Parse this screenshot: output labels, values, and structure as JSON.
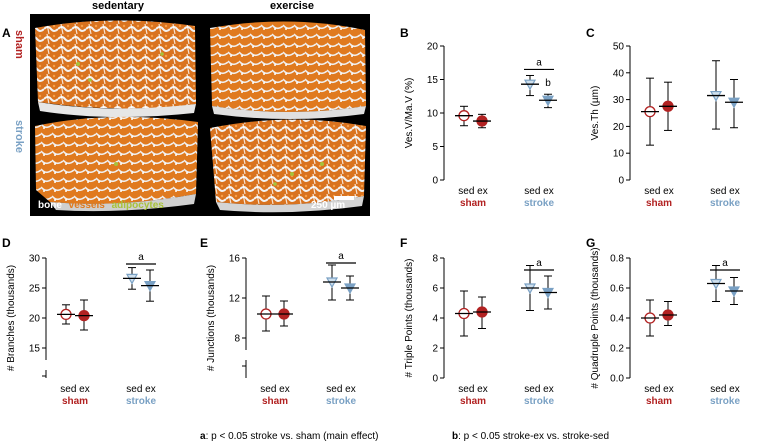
{
  "figure": {
    "panel_letters": [
      "A",
      "B",
      "C",
      "D",
      "E",
      "F",
      "G"
    ],
    "image_panel": {
      "column_headers": [
        "sedentary",
        "exercise"
      ],
      "row_labels": [
        "sham",
        "stroke"
      ],
      "legend": [
        "bone",
        "vessels",
        "adipocytes"
      ],
      "scale_bar": "250 µm"
    },
    "group_labels": {
      "sham_conditions": "sed ex",
      "stroke_conditions": "sed ex",
      "sham": "sham",
      "stroke": "stroke"
    },
    "footnotes": {
      "a_key": "a",
      "a_text": ": p < 0.05 stroke vs. sham (main effect)",
      "b_key": "b",
      "b_text": ": p < 0.05 stroke-ex vs. stroke-sed"
    },
    "colors": {
      "sham": "#b22222",
      "stroke": "#7aa1c4",
      "vessels": "#e07a1f",
      "adipocytes": "#a8c23a",
      "bone": "#ffffff"
    }
  },
  "chart_data": [
    {
      "panel": "B",
      "type": "scatter",
      "ylabel": "Ves.V/Ma.V (%)",
      "ylim": [
        0,
        20
      ],
      "yticks": [
        0,
        5,
        10,
        15,
        20
      ],
      "tick_labels": [
        "0",
        "5",
        "10",
        "15",
        "20"
      ],
      "groups": [
        "sham-sed",
        "sham-ex",
        "stroke-sed",
        "stroke-ex"
      ],
      "mean": [
        9.6,
        8.8,
        14.3,
        11.9
      ],
      "upper": [
        11.0,
        9.8,
        15.6,
        12.8
      ],
      "lower": [
        8.1,
        7.8,
        12.6,
        10.8
      ],
      "bracket": {
        "label": "a",
        "y": 16.5
      },
      "letter": {
        "label": "b",
        "y": 14.0
      }
    },
    {
      "panel": "C",
      "type": "scatter",
      "ylabel": "Ves.Th (µm)",
      "ylim": [
        0,
        50
      ],
      "yticks": [
        0,
        10,
        20,
        30,
        40,
        50
      ],
      "tick_labels": [
        "0",
        "10",
        "20",
        "30",
        "40",
        "50"
      ],
      "groups": [
        "sham-sed",
        "sham-ex",
        "stroke-sed",
        "stroke-ex"
      ],
      "mean": [
        25.5,
        27.5,
        31.5,
        29.0
      ],
      "upper": [
        38.0,
        36.5,
        44.5,
        37.5
      ],
      "lower": [
        13.0,
        18.5,
        19.0,
        19.5
      ]
    },
    {
      "panel": "D",
      "type": "scatter",
      "ylabel": "# Branches (thousands)",
      "ylim": [
        10,
        30
      ],
      "yticks": [
        15,
        20,
        25,
        30
      ],
      "tick_labels": [
        "15",
        "20",
        "25",
        "30"
      ],
      "axis_break": true,
      "groups": [
        "sham-sed",
        "sham-ex",
        "stroke-sed",
        "stroke-ex"
      ],
      "mean": [
        20.6,
        20.4,
        26.6,
        25.4
      ],
      "upper": [
        22.2,
        23.0,
        28.4,
        28.0
      ],
      "lower": [
        19.0,
        18.0,
        24.8,
        22.8
      ],
      "bracket": {
        "label": "a",
        "y": 29.0
      }
    },
    {
      "panel": "E",
      "type": "scatter",
      "ylabel": "# Junctions (thousands)",
      "ylim": [
        4,
        16
      ],
      "yticks": [
        8,
        12,
        16
      ],
      "tick_labels": [
        "8",
        "12",
        "16"
      ],
      "axis_break": true,
      "groups": [
        "sham-sed",
        "sham-ex",
        "stroke-sed",
        "stroke-ex"
      ],
      "mean": [
        10.4,
        10.4,
        13.6,
        13.0
      ],
      "upper": [
        12.2,
        11.7,
        15.3,
        14.2
      ],
      "lower": [
        8.7,
        9.2,
        11.8,
        11.8
      ],
      "bracket": {
        "label": "a",
        "y": 15.5
      }
    },
    {
      "panel": "F",
      "type": "scatter",
      "ylabel": "# Triple Points (thousands)",
      "ylim": [
        0,
        8
      ],
      "yticks": [
        0,
        2,
        4,
        6,
        8
      ],
      "tick_labels": [
        "0",
        "2",
        "4",
        "6",
        "8"
      ],
      "groups": [
        "sham-sed",
        "sham-ex",
        "stroke-sed",
        "stroke-ex"
      ],
      "mean": [
        4.3,
        4.4,
        6.0,
        5.7
      ],
      "upper": [
        5.8,
        5.4,
        7.5,
        6.8
      ],
      "lower": [
        2.8,
        3.3,
        4.5,
        4.6
      ],
      "bracket": {
        "label": "a",
        "y": 7.2
      }
    },
    {
      "panel": "G",
      "type": "scatter",
      "ylabel": "# Quadruple Points (thousands)",
      "ylim": [
        0,
        0.8
      ],
      "yticks": [
        0,
        0.2,
        0.4,
        0.6,
        0.8
      ],
      "tick_labels": [
        "0.0",
        "0.2",
        "0.4",
        "0.6",
        "0.8"
      ],
      "groups": [
        "sham-sed",
        "sham-ex",
        "stroke-sed",
        "stroke-ex"
      ],
      "mean": [
        0.4,
        0.42,
        0.63,
        0.58
      ],
      "upper": [
        0.52,
        0.51,
        0.75,
        0.67
      ],
      "lower": [
        0.28,
        0.35,
        0.51,
        0.49
      ],
      "bracket": {
        "label": "a",
        "y": 0.72
      }
    }
  ]
}
